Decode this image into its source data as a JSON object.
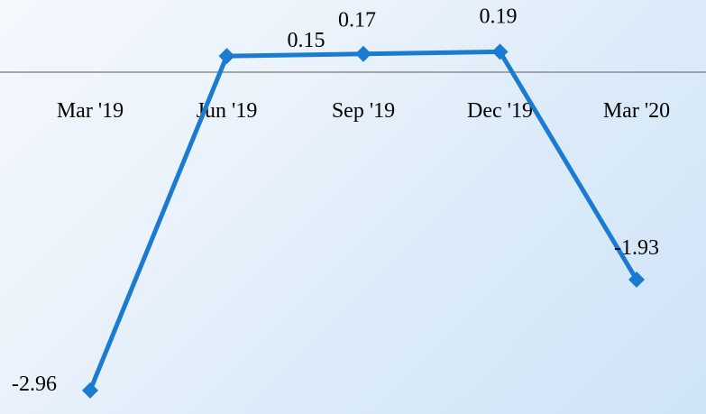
{
  "chart_data": {
    "type": "line",
    "categories": [
      "Mar '19",
      "Jun '19",
      "Sep '19",
      "Dec '19",
      "Mar '20"
    ],
    "values": [
      -2.96,
      0.15,
      0.17,
      0.19,
      -1.93
    ],
    "data_labels": [
      "-2.96",
      "0.15",
      "0.17",
      "0.19",
      "-1.93"
    ],
    "title": "",
    "xlabel": "",
    "ylabel": "",
    "ylim": [
      -3.0,
      0.0
    ],
    "grid": false,
    "legend": "none",
    "colors": {
      "series": "#1a7bd0",
      "axis": "#8c8c8c",
      "text": "#000000"
    }
  }
}
